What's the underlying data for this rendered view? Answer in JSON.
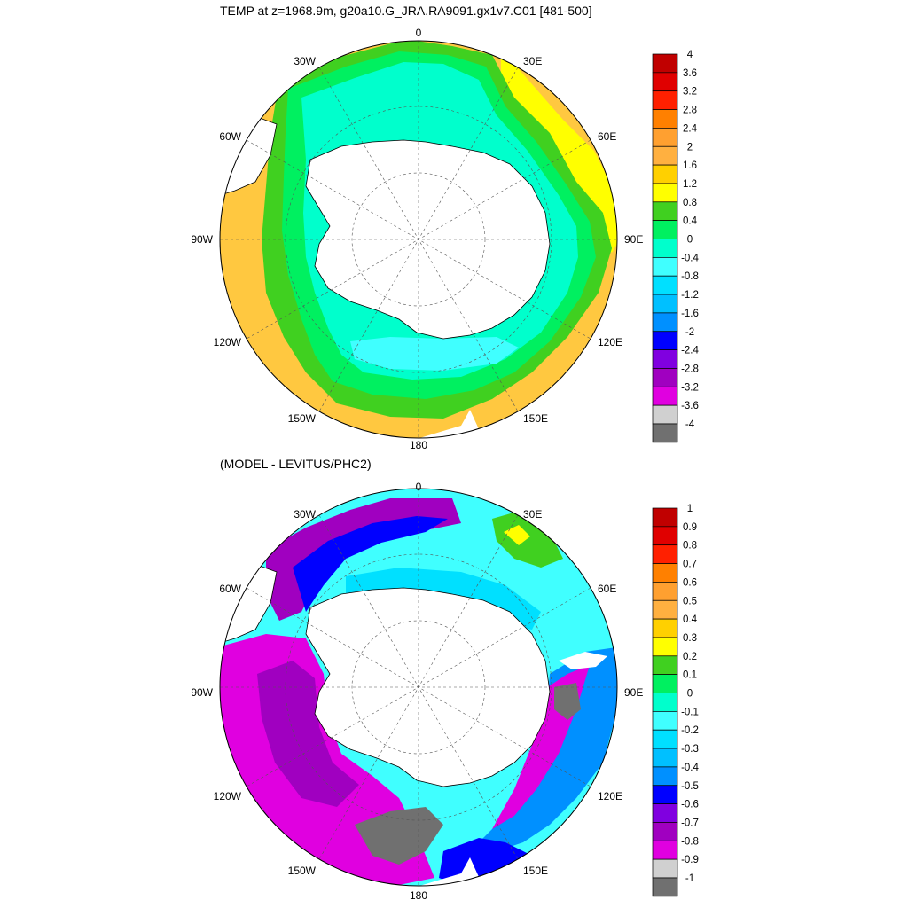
{
  "panel_top": {
    "title": "TEMP at z=1968.9m, g20a10.G_JRA.RA9091.gx1v7.C01 [481-500]"
  },
  "panel_bottom": {
    "title": "(MODEL - LEVITUS/PHC2)"
  },
  "map_labels": {
    "lon_0": "0",
    "lon_30e": "30E",
    "lon_60e": "60E",
    "lon_90e": "90E",
    "lon_120e": "120E",
    "lon_150e": "150E",
    "lon_180": "180",
    "lon_150w": "150W",
    "lon_120w": "120W",
    "lon_90w": "90W",
    "lon_60w": "60W",
    "lon_30w": "30W"
  },
  "colorbar_top": {
    "levels": [
      "4",
      "3.6",
      "3.2",
      "2.8",
      "2.4",
      "2",
      "1.6",
      "1.2",
      "0.8",
      "0.4",
      "0",
      "-0.4",
      "-0.8",
      "-1.2",
      "-1.6",
      "-2",
      "-2.4",
      "-2.8",
      "-3.2",
      "-3.6",
      "-4"
    ],
    "colors": [
      "#c00000",
      "#e00000",
      "#ff2000",
      "#ff8000",
      "#ffa030",
      "#ffb040",
      "#ffd000",
      "#ffff00",
      "#40d020",
      "#00f060",
      "#00ffcc",
      "#40ffff",
      "#00e0ff",
      "#00c0ff",
      "#0090ff",
      "#0000ff",
      "#8000e0",
      "#a000c0",
      "#e000e0",
      "#d0d0d0",
      "#707070"
    ]
  },
  "colorbar_bottom": {
    "levels": [
      "1",
      "0.9",
      "0.8",
      "0.7",
      "0.6",
      "0.5",
      "0.4",
      "0.3",
      "0.2",
      "0.1",
      "0",
      "-0.1",
      "-0.2",
      "-0.3",
      "-0.4",
      "-0.5",
      "-0.6",
      "-0.7",
      "-0.8",
      "-0.9",
      "-1"
    ],
    "colors": [
      "#c00000",
      "#e00000",
      "#ff2000",
      "#ff8000",
      "#ffa030",
      "#ffb040",
      "#ffd000",
      "#ffff00",
      "#40d020",
      "#00f060",
      "#00ffcc",
      "#40ffff",
      "#00e0ff",
      "#00c0ff",
      "#0090ff",
      "#0000ff",
      "#8000e0",
      "#a000c0",
      "#e000e0",
      "#d0d0d0",
      "#707070"
    ]
  }
}
